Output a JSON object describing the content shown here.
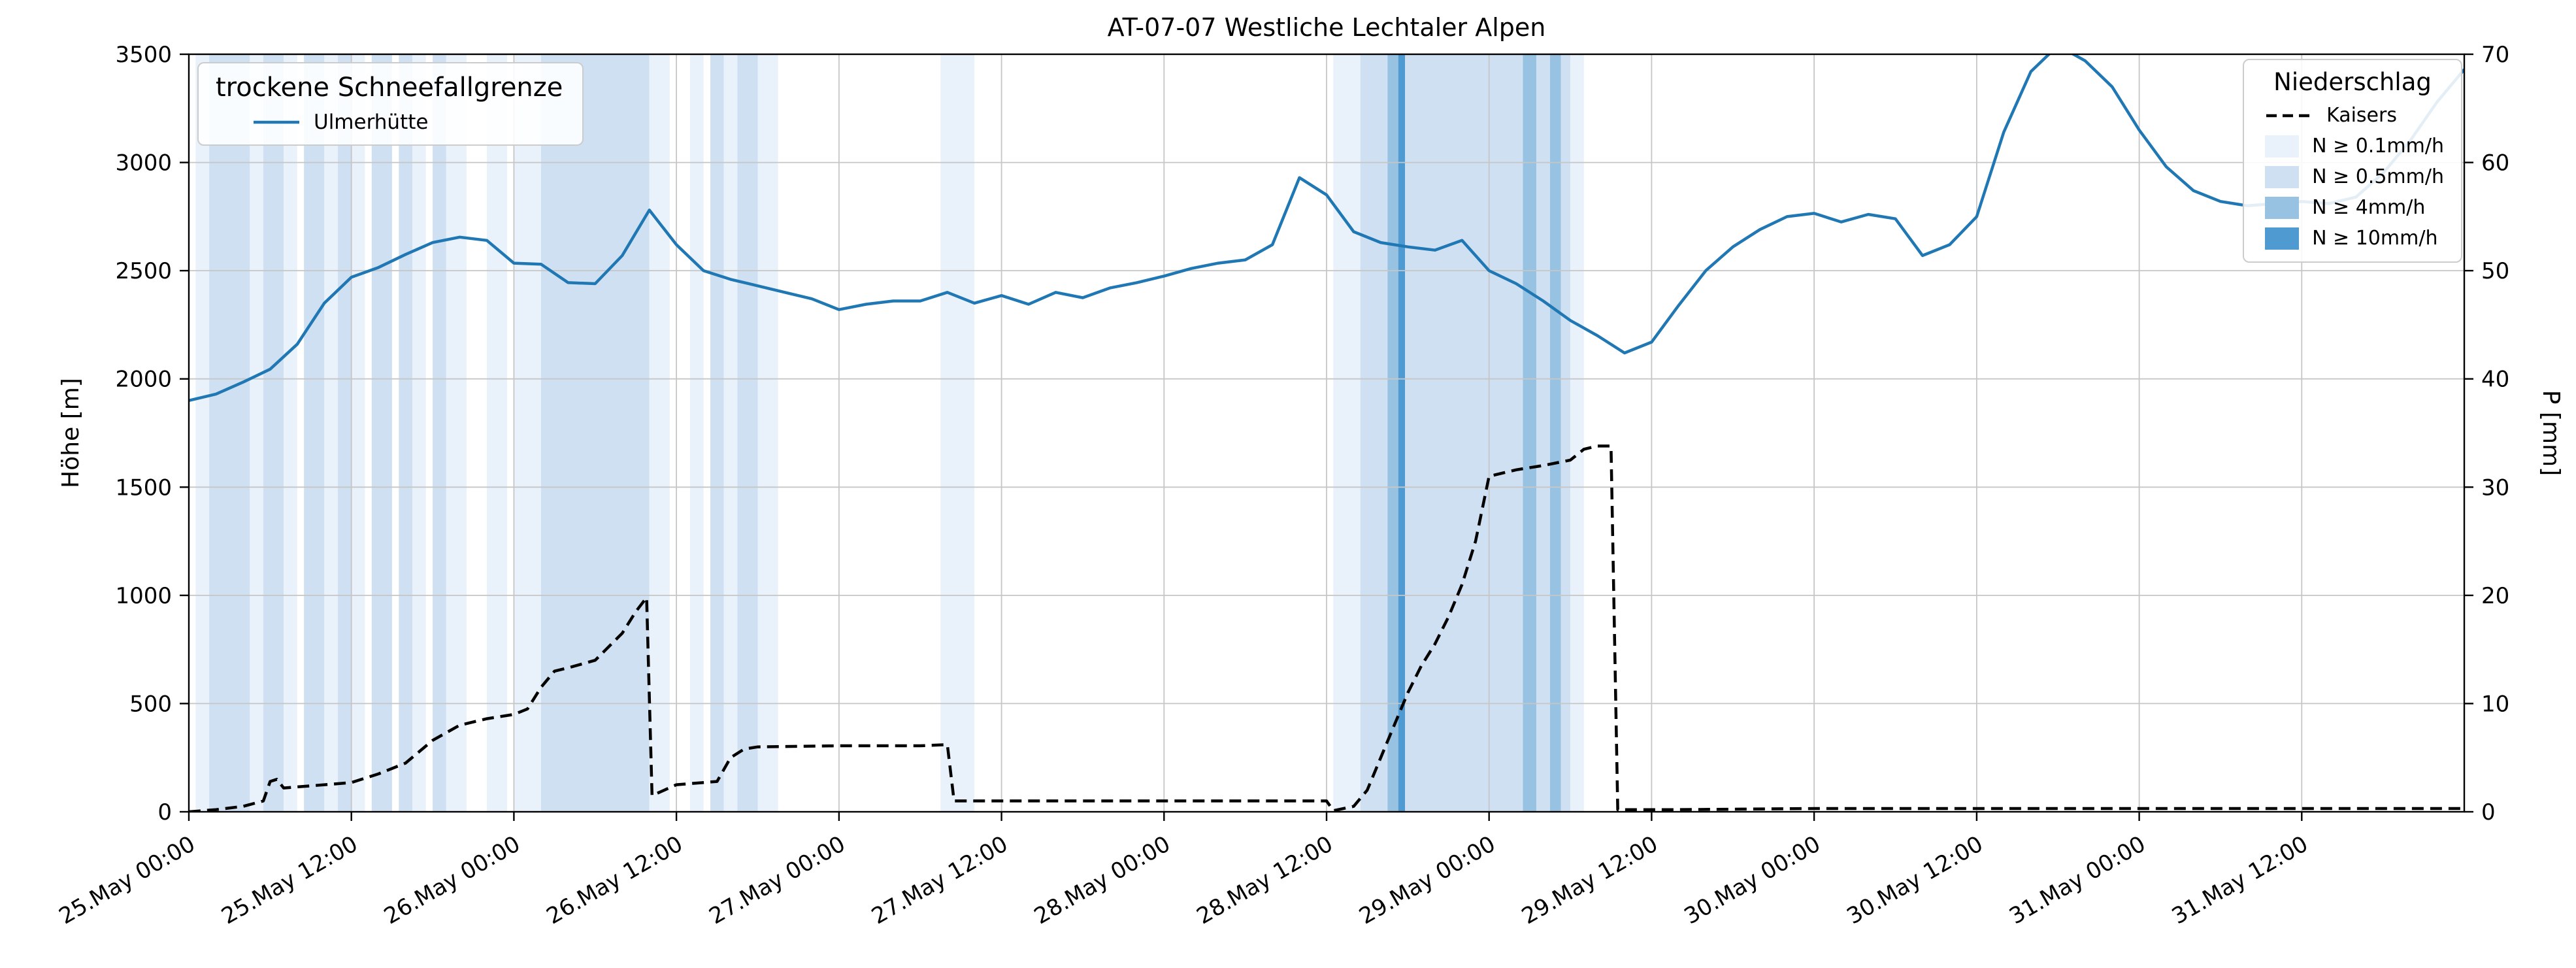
{
  "legends": {
    "left_title": "trockene Schneefallgrenze",
    "right_title": "Niederschlag"
  },
  "chart_data": {
    "type": "line",
    "title": "AT-07-07 Westliche Lechtaler Alpen",
    "xlabel": "",
    "ylabel_left": "Höhe [m]",
    "ylabel_right": "P [mm]",
    "ylim_left": [
      0,
      3500
    ],
    "ylim_right": [
      0,
      70
    ],
    "yticks_left": [
      0,
      500,
      1000,
      1500,
      2000,
      2500,
      3000,
      3500
    ],
    "yticks_right": [
      0,
      10,
      20,
      30,
      40,
      50,
      60,
      70
    ],
    "grid": true,
    "x_unit": "hours since 25.May 00:00",
    "xlim_hours": [
      0,
      168
    ],
    "xticks": [
      {
        "hour": 0,
        "label": "25.May 00:00"
      },
      {
        "hour": 12,
        "label": "25.May 12:00"
      },
      {
        "hour": 24,
        "label": "26.May 00:00"
      },
      {
        "hour": 36,
        "label": "26.May 12:00"
      },
      {
        "hour": 48,
        "label": "27.May 00:00"
      },
      {
        "hour": 60,
        "label": "27.May 12:00"
      },
      {
        "hour": 72,
        "label": "28.May 00:00"
      },
      {
        "hour": 84,
        "label": "28.May 12:00"
      },
      {
        "hour": 96,
        "label": "29.May 00:00"
      },
      {
        "hour": 108,
        "label": "29.May 12:00"
      },
      {
        "hour": 120,
        "label": "30.May 00:00"
      },
      {
        "hour": 132,
        "label": "30.May 12:00"
      },
      {
        "hour": 144,
        "label": "31.May 00:00"
      },
      {
        "hour": 156,
        "label": "31.May 12:00"
      }
    ],
    "series": [
      {
        "name": "Ulmerhütte",
        "axis": "left",
        "unit": "m",
        "color": "#1f77b4",
        "line_style": "solid",
        "x_start_h": 0,
        "x_step_h": 2,
        "values": [
          1900,
          1930,
          1985,
          2045,
          2160,
          2350,
          2470,
          2515,
          2575,
          2630,
          2655,
          2640,
          2535,
          2530,
          2445,
          2440,
          2570,
          2780,
          2620,
          2500,
          2460,
          2430,
          2400,
          2370,
          2320,
          2345,
          2360,
          2360,
          2400,
          2350,
          2385,
          2345,
          2400,
          2375,
          2420,
          2445,
          2475,
          2510,
          2535,
          2550,
          2620,
          2930,
          2850,
          2680,
          2630,
          2610,
          2595,
          2640,
          2500,
          2440,
          2360,
          2270,
          2200,
          2120,
          2170,
          2340,
          2500,
          2610,
          2690,
          2750,
          2765,
          2725,
          2760,
          2740,
          2570,
          2620,
          2750,
          3140,
          3420,
          3540,
          3470,
          3350,
          3150,
          2980,
          2870,
          2820,
          2800,
          2810,
          2820,
          2810,
          2840,
          2950,
          3100,
          3280,
          3430
        ]
      },
      {
        "name": "Kaisers",
        "axis": "right",
        "unit": "mm",
        "color": "#000000",
        "line_style": "dashed",
        "points": [
          [
            0,
            0
          ],
          [
            2,
            0.2
          ],
          [
            4,
            0.5
          ],
          [
            5.5,
            1.0
          ],
          [
            6,
            2.8
          ],
          [
            6.5,
            3.0
          ],
          [
            7,
            2.2
          ],
          [
            9,
            2.4
          ],
          [
            11,
            2.6
          ],
          [
            12,
            2.7
          ],
          [
            14,
            3.5
          ],
          [
            16,
            4.5
          ],
          [
            18,
            6.6
          ],
          [
            20,
            8.0
          ],
          [
            22,
            8.6
          ],
          [
            24,
            9.0
          ],
          [
            25,
            9.5
          ],
          [
            26,
            11.5
          ],
          [
            27,
            13.0
          ],
          [
            28,
            13.3
          ],
          [
            30,
            14.0
          ],
          [
            32,
            16.5
          ],
          [
            33,
            18.5
          ],
          [
            33.8,
            19.8
          ],
          [
            34.2,
            1.5
          ],
          [
            36,
            2.5
          ],
          [
            39,
            2.8
          ],
          [
            40,
            5.0
          ],
          [
            41,
            5.8
          ],
          [
            42,
            6.0
          ],
          [
            48,
            6.1
          ],
          [
            54,
            6.1
          ],
          [
            56,
            6.2
          ],
          [
            56.5,
            1.0
          ],
          [
            60,
            1.0
          ],
          [
            66,
            1.0
          ],
          [
            72,
            1.0
          ],
          [
            78,
            1.0
          ],
          [
            84,
            1.0
          ],
          [
            84.5,
            0.1
          ],
          [
            86,
            0.5
          ],
          [
            87,
            2.0
          ],
          [
            88,
            5.0
          ],
          [
            89,
            8.0
          ],
          [
            90,
            11.0
          ],
          [
            91,
            13.5
          ],
          [
            92,
            15.5
          ],
          [
            93,
            18.0
          ],
          [
            94,
            21.0
          ],
          [
            95,
            25.0
          ],
          [
            96,
            31.0
          ],
          [
            98,
            31.6
          ],
          [
            100,
            32.0
          ],
          [
            102,
            32.5
          ],
          [
            103,
            33.5
          ],
          [
            104,
            33.8
          ],
          [
            105,
            33.8
          ],
          [
            105.5,
            0.2
          ],
          [
            110,
            0.2
          ],
          [
            120,
            0.3
          ],
          [
            130,
            0.3
          ],
          [
            140,
            0.3
          ],
          [
            150,
            0.3
          ],
          [
            160,
            0.3
          ],
          [
            168,
            0.3
          ]
        ]
      }
    ],
    "precip_levels": [
      {
        "label": "N ≥ 0.1mm/h",
        "color": "#e9f1fa"
      },
      {
        "label": "N ≥ 0.5mm/h",
        "color": "#cfe0f2"
      },
      {
        "label": "N ≥ 4mm/h",
        "color": "#97c2e1"
      },
      {
        "label": "N ≥ 10mm/h",
        "color": "#4f9ad1"
      }
    ],
    "precip_bands": [
      {
        "start_h": 0.5,
        "end_h": 1.5,
        "level": 1
      },
      {
        "start_h": 1.5,
        "end_h": 4.5,
        "level": 2
      },
      {
        "start_h": 4.5,
        "end_h": 5.5,
        "level": 1
      },
      {
        "start_h": 5.5,
        "end_h": 7.0,
        "level": 2
      },
      {
        "start_h": 7.0,
        "end_h": 8.0,
        "level": 1
      },
      {
        "start_h": 8.5,
        "end_h": 10.0,
        "level": 2
      },
      {
        "start_h": 10.0,
        "end_h": 11.0,
        "level": 1
      },
      {
        "start_h": 11.0,
        "end_h": 12.0,
        "level": 2
      },
      {
        "start_h": 12.0,
        "end_h": 13.0,
        "level": 1
      },
      {
        "start_h": 13.5,
        "end_h": 15.0,
        "level": 2
      },
      {
        "start_h": 15.5,
        "end_h": 16.5,
        "level": 2
      },
      {
        "start_h": 16.5,
        "end_h": 17.5,
        "level": 1
      },
      {
        "start_h": 18.0,
        "end_h": 19.0,
        "level": 2
      },
      {
        "start_h": 19.0,
        "end_h": 20.5,
        "level": 1
      },
      {
        "start_h": 22.0,
        "end_h": 23.5,
        "level": 1
      },
      {
        "start_h": 24.0,
        "end_h": 26.0,
        "level": 1
      },
      {
        "start_h": 26.0,
        "end_h": 34.0,
        "level": 2
      },
      {
        "start_h": 34.0,
        "end_h": 35.5,
        "level": 1
      },
      {
        "start_h": 37.0,
        "end_h": 38.0,
        "level": 1
      },
      {
        "start_h": 38.5,
        "end_h": 39.5,
        "level": 2
      },
      {
        "start_h": 39.5,
        "end_h": 40.5,
        "level": 1
      },
      {
        "start_h": 40.5,
        "end_h": 42.0,
        "level": 2
      },
      {
        "start_h": 42.0,
        "end_h": 43.5,
        "level": 1
      },
      {
        "start_h": 55.5,
        "end_h": 58.0,
        "level": 1
      },
      {
        "start_h": 84.5,
        "end_h": 86.5,
        "level": 1
      },
      {
        "start_h": 86.5,
        "end_h": 88.5,
        "level": 2
      },
      {
        "start_h": 88.5,
        "end_h": 89.3,
        "level": 3
      },
      {
        "start_h": 89.3,
        "end_h": 89.8,
        "level": 4
      },
      {
        "start_h": 89.8,
        "end_h": 98.5,
        "level": 2
      },
      {
        "start_h": 98.5,
        "end_h": 99.5,
        "level": 3
      },
      {
        "start_h": 99.5,
        "end_h": 100.5,
        "level": 2
      },
      {
        "start_h": 100.5,
        "end_h": 101.3,
        "level": 3
      },
      {
        "start_h": 101.3,
        "end_h": 102.0,
        "level": 2
      },
      {
        "start_h": 102.0,
        "end_h": 103.0,
        "level": 1
      }
    ]
  }
}
